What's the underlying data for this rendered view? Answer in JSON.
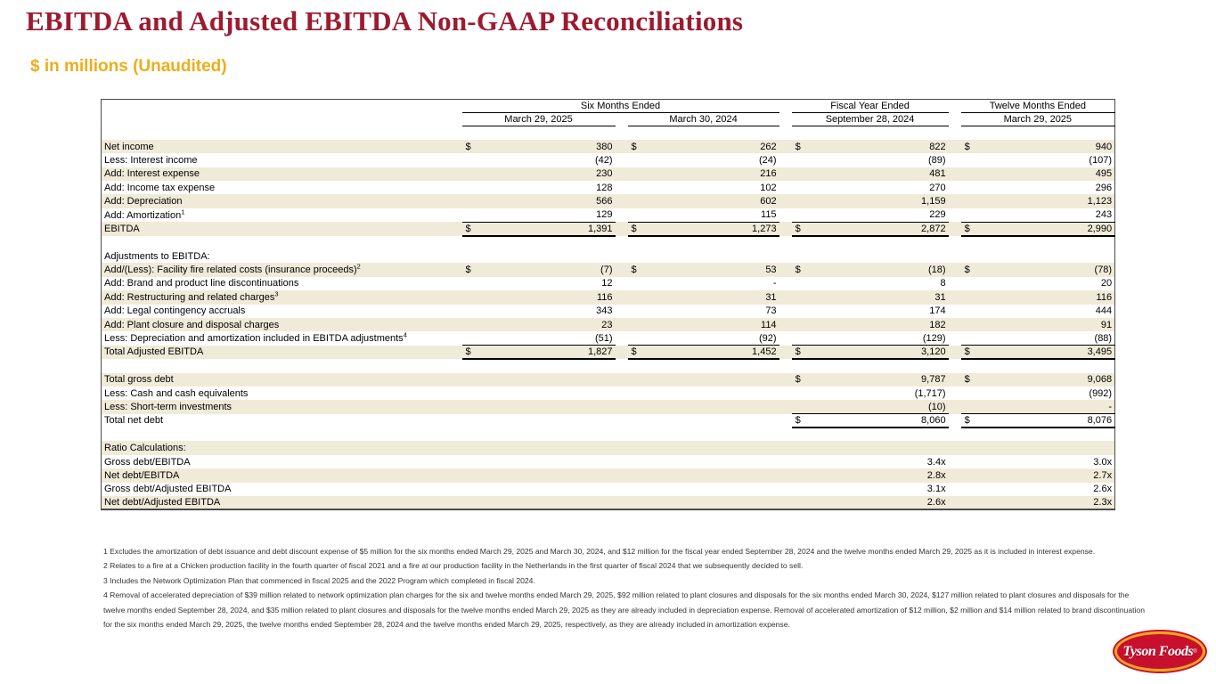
{
  "page": {
    "title": "EBITDA and Adjusted EBITDA Non-GAAP Reconciliations",
    "subtitle": "$ in millions (Unaudited)"
  },
  "colors": {
    "title_red": "#9C1B30",
    "subtitle_gold": "#EDAD1C",
    "row_shade_beige": "#F0EAD8",
    "logo_red": "#C8102E",
    "logo_gold": "#F3A81F"
  },
  "table": {
    "col_groups": [
      {
        "span_label": "Six Months Ended",
        "columns": [
          "March 29, 2025",
          "March 30, 2024"
        ]
      },
      {
        "span_label": "Fiscal Year Ended",
        "columns": [
          "September 28, 2024"
        ]
      },
      {
        "span_label": "Twelve Months Ended",
        "columns": [
          "March 29, 2025"
        ]
      }
    ],
    "rows": [
      {
        "spacer": true
      },
      {
        "label": "Net income",
        "shaded": true,
        "cells": [
          {
            "d": "$",
            "v": "380"
          },
          {
            "d": "$",
            "v": "262"
          },
          {
            "d": "$",
            "v": "822"
          },
          {
            "d": "$",
            "v": "940"
          }
        ]
      },
      {
        "label": "Less: Interest income",
        "shaded": false,
        "cells": [
          {
            "v": "(42)"
          },
          {
            "v": "(24)"
          },
          {
            "v": "(89)"
          },
          {
            "v": "(107)"
          }
        ]
      },
      {
        "label": "Add: Interest expense",
        "shaded": true,
        "cells": [
          {
            "v": "230"
          },
          {
            "v": "216"
          },
          {
            "v": "481"
          },
          {
            "v": "495"
          }
        ]
      },
      {
        "label": "Add: Income tax expense",
        "shaded": false,
        "cells": [
          {
            "v": "128"
          },
          {
            "v": "102"
          },
          {
            "v": "270"
          },
          {
            "v": "296"
          }
        ]
      },
      {
        "label": "Add: Depreciation",
        "shaded": true,
        "cells": [
          {
            "v": "566"
          },
          {
            "v": "602"
          },
          {
            "v": "1,159"
          },
          {
            "v": "1,123"
          }
        ]
      },
      {
        "label": "Add: Amortization",
        "sup": "1",
        "shaded": false,
        "cells": [
          {
            "v": "129"
          },
          {
            "v": "115"
          },
          {
            "v": "229"
          },
          {
            "v": "243"
          }
        ]
      },
      {
        "label": "EBITDA",
        "shaded": true,
        "total": true,
        "cells": [
          {
            "d": "$",
            "v": "1,391"
          },
          {
            "d": "$",
            "v": "1,273"
          },
          {
            "d": "$",
            "v": "2,872"
          },
          {
            "d": "$",
            "v": "2,990"
          }
        ]
      },
      {
        "spacer": true
      },
      {
        "label": "Adjustments to EBITDA:",
        "shaded": false,
        "cells": [
          {},
          {},
          {},
          {}
        ]
      },
      {
        "label": "Add/(Less): Facility fire related costs (insurance proceeds)",
        "sup": "2",
        "shaded": true,
        "cells": [
          {
            "d": "$",
            "v": "(7)"
          },
          {
            "d": "$",
            "v": "53"
          },
          {
            "d": "$",
            "v": "(18)"
          },
          {
            "d": "$",
            "v": "(78)"
          }
        ]
      },
      {
        "label": "Add: Brand and product line discontinuations",
        "shaded": false,
        "cells": [
          {
            "v": "12"
          },
          {
            "v": "-"
          },
          {
            "v": "8"
          },
          {
            "v": "20"
          }
        ]
      },
      {
        "label": "Add: Restructuring and related charges",
        "sup": "3",
        "shaded": true,
        "cells": [
          {
            "v": "116"
          },
          {
            "v": "31"
          },
          {
            "v": "31"
          },
          {
            "v": "116"
          }
        ]
      },
      {
        "label": "Add: Legal contingency accruals",
        "shaded": false,
        "cells": [
          {
            "v": "343"
          },
          {
            "v": "73"
          },
          {
            "v": "174"
          },
          {
            "v": "444"
          }
        ]
      },
      {
        "label": "Add: Plant closure and disposal charges",
        "shaded": true,
        "cells": [
          {
            "v": "23"
          },
          {
            "v": "114"
          },
          {
            "v": "182"
          },
          {
            "v": "91"
          }
        ]
      },
      {
        "label": "Less: Depreciation and amortization included in EBITDA adjustments",
        "sup": "4",
        "shaded": false,
        "cells": [
          {
            "v": "(51)"
          },
          {
            "v": "(92)"
          },
          {
            "v": "(129)"
          },
          {
            "v": "(88)"
          }
        ]
      },
      {
        "label": "Total Adjusted EBITDA",
        "shaded": true,
        "total": true,
        "cells": [
          {
            "d": "$",
            "v": "1,827"
          },
          {
            "d": "$",
            "v": "1,452"
          },
          {
            "d": "$",
            "v": "3,120"
          },
          {
            "d": "$",
            "v": "3,495"
          }
        ]
      },
      {
        "spacer": true
      },
      {
        "label": "Total gross debt",
        "shaded": true,
        "cells": [
          {},
          {},
          {
            "d": "$",
            "v": "9,787"
          },
          {
            "d": "$",
            "v": "9,068"
          }
        ]
      },
      {
        "label": "Less: Cash and cash equivalents",
        "shaded": false,
        "cells": [
          {},
          {},
          {
            "v": "(1,717)"
          },
          {
            "v": "(992)"
          }
        ]
      },
      {
        "label": "Less: Short-term investments",
        "shaded": true,
        "cells": [
          {},
          {},
          {
            "v": "(10)"
          },
          {
            "v": "-"
          }
        ]
      },
      {
        "label": "Total net debt",
        "shaded": false,
        "total": true,
        "cells": [
          {},
          {},
          {
            "d": "$",
            "v": "8,060"
          },
          {
            "d": "$",
            "v": "8,076"
          }
        ]
      },
      {
        "spacer": true
      },
      {
        "label": "Ratio Calculations:",
        "shaded": true,
        "cells": [
          {},
          {},
          {},
          {}
        ]
      },
      {
        "label": "Gross debt/EBITDA",
        "shaded": false,
        "cells": [
          {},
          {},
          {
            "v": "3.4x"
          },
          {
            "v": "3.0x"
          }
        ]
      },
      {
        "label": "Net debt/EBITDA",
        "shaded": true,
        "cells": [
          {},
          {},
          {
            "v": "2.8x"
          },
          {
            "v": "2.7x"
          }
        ]
      },
      {
        "label": "Gross debt/Adjusted EBITDA",
        "shaded": false,
        "cells": [
          {},
          {},
          {
            "v": "3.1x"
          },
          {
            "v": "2.6x"
          }
        ]
      },
      {
        "label": "Net debt/Adjusted EBITDA",
        "shaded": true,
        "cells": [
          {},
          {},
          {
            "v": "2.6x"
          },
          {
            "v": "2.3x"
          }
        ]
      }
    ]
  },
  "footnotes": [
    "1 Excludes the amortization of debt issuance and debt discount expense of $5 million for the six months ended March 29, 2025 and March 30, 2024, and $12 million for the fiscal year ended September 28, 2024 and the twelve months ended March 29, 2025 as it is included in interest expense.",
    "2 Relates to a fire at a Chicken production facility in the fourth quarter of fiscal 2021 and a fire at our production facility in the Netherlands in the first quarter of fiscal 2024 that we subsequently decided to sell.",
    "3 Includes the Network Optimization Plan that commenced in fiscal 2025 and the 2022 Program which completed in fiscal 2024.",
    "4  Removal of accelerated depreciation of $39 million related to network optimization plan charges for the six and twelve months ended March 29, 2025, $92 million related to plant closures and disposals for the six months ended March 30, 2024, $127 million related to plant closures and disposals for the twelve months ended September 28, 2024, and $35 million related to plant closures and disposals for the twelve months ended March 29, 2025 as they are already included in depreciation expense. Removal of accelerated amortization of $12 million, $2 million and $14 million related to brand discontinuation for the six months ended March 29, 2025, the twelve months ended September 28, 2024 and the twelve months ended March 29, 2025, respectively, as they are already included in amortization expense."
  ],
  "logo": {
    "text": "Tyson Foods",
    "reg": "®"
  }
}
